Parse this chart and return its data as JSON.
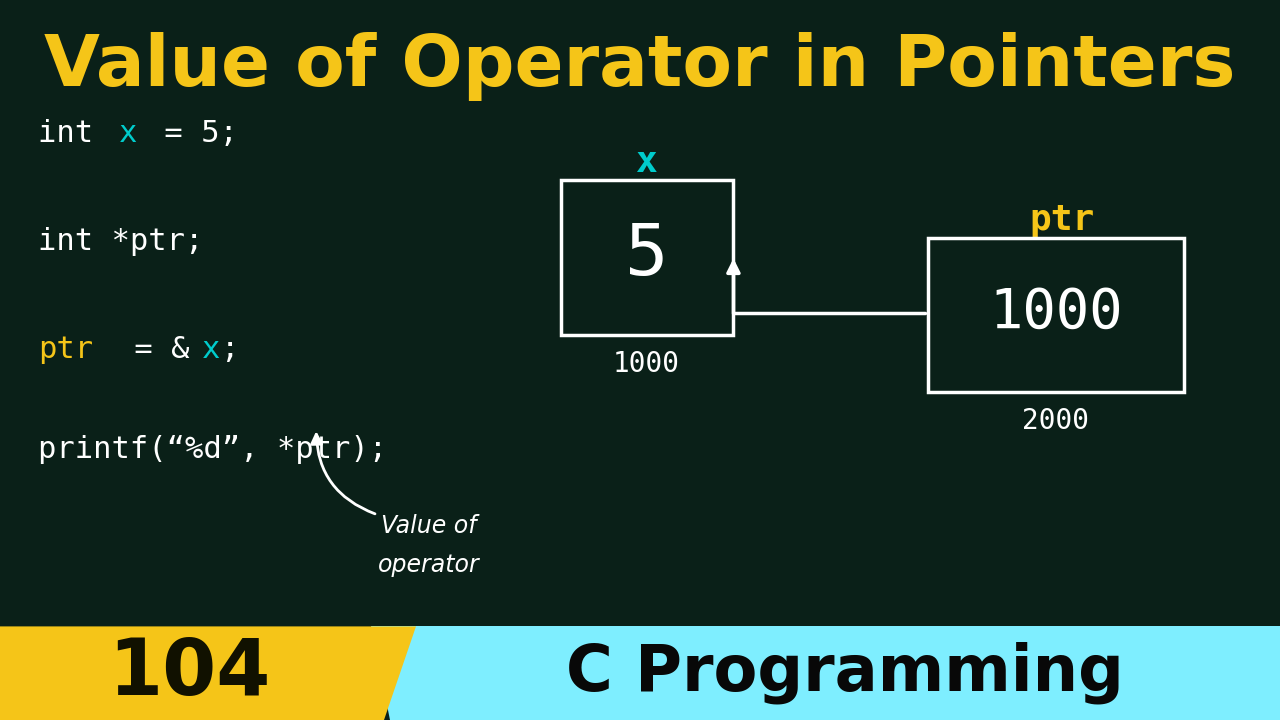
{
  "bg_color": "#0a2018",
  "title": "Value of Operator in Pointers",
  "title_color": "#f5c518",
  "title_fontsize": 52,
  "bg_color_hex": "#0a2018",
  "annotation_color": "#ffffff",
  "badge_number": "104",
  "badge_bg": "#f5c518",
  "badge_text_color": "#111100",
  "banner_text": "C Programming",
  "banner_bg": "#7eeeff",
  "banner_text_color": "#080808"
}
